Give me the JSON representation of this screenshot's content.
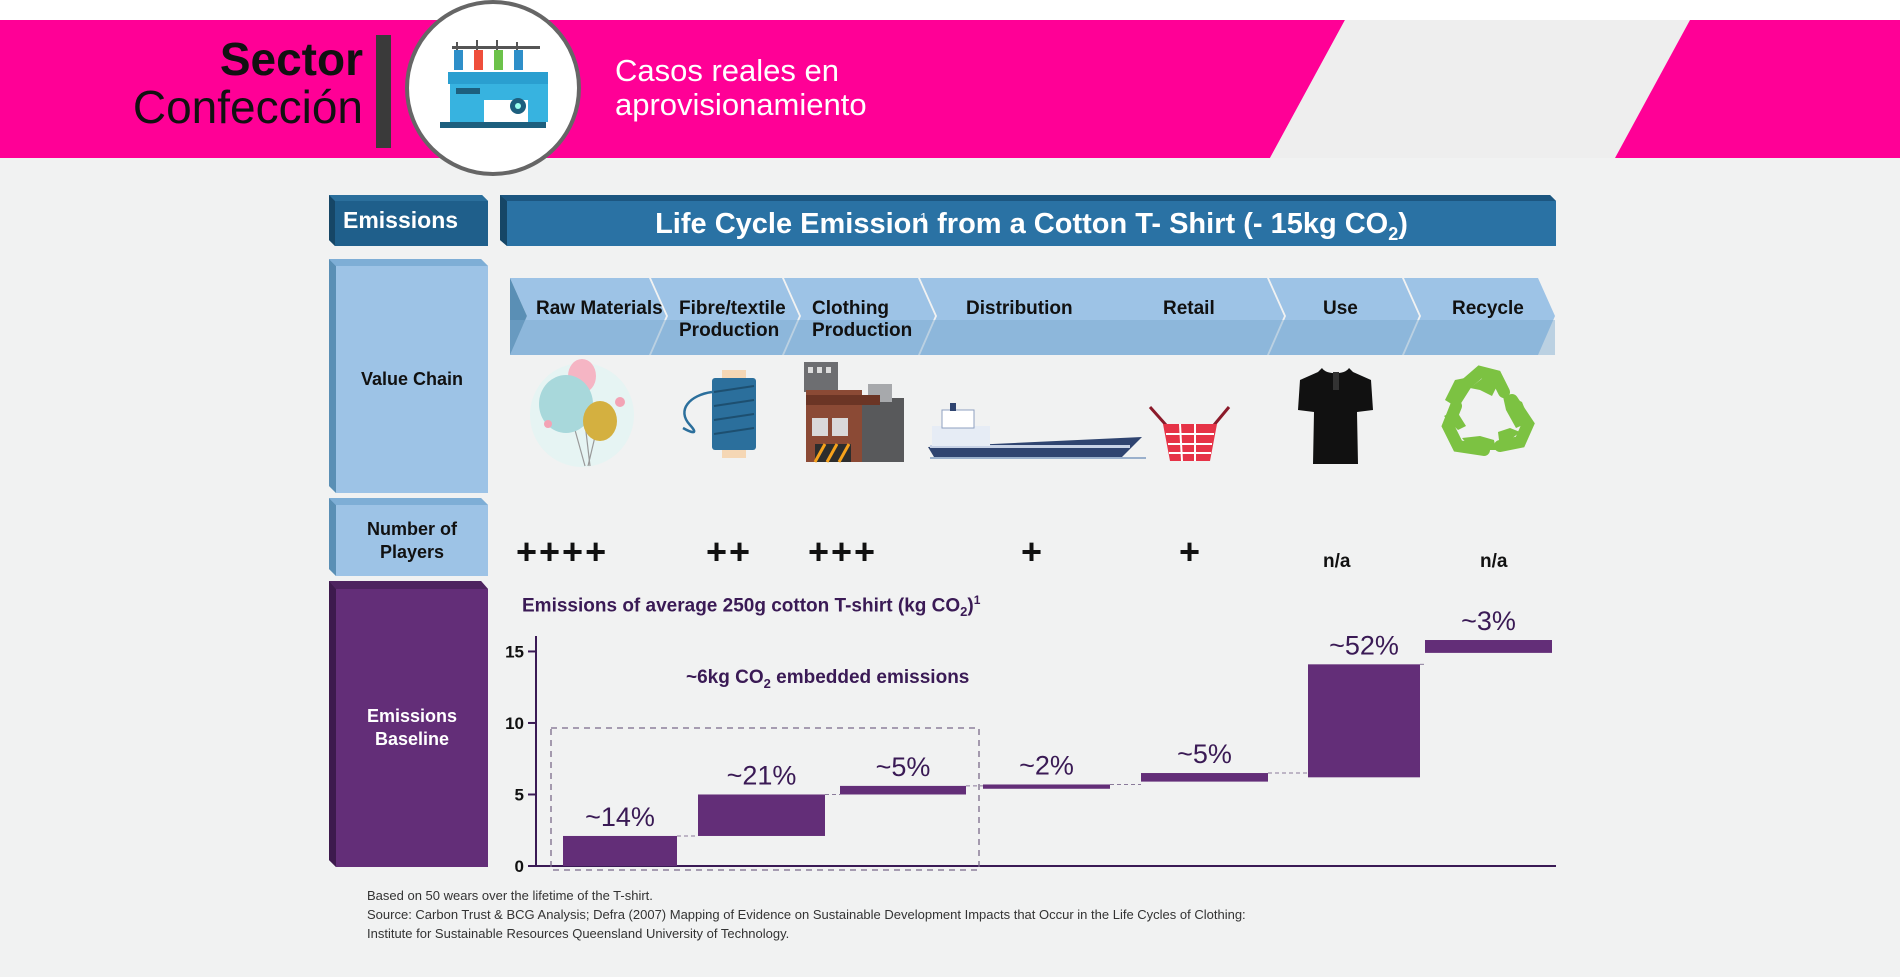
{
  "header": {
    "sector_bold": "Sector",
    "sector_regular": "Confección",
    "subtitle_line1": "Casos reales en",
    "subtitle_line2": "aprovisionamiento",
    "icon": "sewing-machine-icon",
    "colors": {
      "magenta": "#ff0096",
      "dark_bar": "#3a3a3a"
    }
  },
  "infographic": {
    "emissions_tab": "Emissions",
    "main_title": "Life Cycle Emission from a Cotton T- Shirt (- 15kg CO",
    "main_title_sub": "2",
    "main_title_end": ")",
    "main_title_mark": "1",
    "rows": {
      "value_chain": "Value Chain",
      "number_of_players_1": "Number of",
      "number_of_players_2": "Players",
      "emissions_baseline_1": "Emissions",
      "emissions_baseline_2": "Baseline"
    },
    "stages": [
      {
        "label1": "Raw Materials",
        "label2": "",
        "icon": "balloons-icon",
        "players": "++++"
      },
      {
        "label1": "Fibre/textile",
        "label2": "Production",
        "icon": "thread-spool-icon",
        "players": "++"
      },
      {
        "label1": "Clothing",
        "label2": "Production",
        "icon": "factory-icon",
        "players": "+++"
      },
      {
        "label1": "Distribution",
        "label2": "",
        "icon": "cargo-ship-icon",
        "players": "+"
      },
      {
        "label1": "Retail",
        "label2": "",
        "icon": "shopping-basket-icon",
        "players": "+"
      },
      {
        "label1": "Use",
        "label2": "",
        "icon": "tshirt-icon",
        "players": "n/a"
      },
      {
        "label1": "Recycle",
        "label2": "",
        "icon": "recycle-icon",
        "players": "n/a"
      }
    ],
    "colors": {
      "dark_blue": "#1f5f8b",
      "light_blue": "#9dc3e6",
      "purple": "#632e78",
      "recycle_green": "#7cc242"
    }
  },
  "chart_data": {
    "type": "bar",
    "subtype": "waterfall",
    "title": "Emissions of average 250g cotton T-shirt (kg CO",
    "title_sub": "2",
    "title_end": ")",
    "title_mark": "1",
    "annotation": "~6kg CO",
    "annotation_sub": "2",
    "annotation_end": " embedded emissions",
    "yticks": [
      0,
      5,
      10,
      15
    ],
    "ylim": [
      0,
      16.5
    ],
    "segments": [
      {
        "label": "~14%",
        "start": 0.0,
        "end": 2.1
      },
      {
        "label": "~21%",
        "start": 2.1,
        "end": 5.0
      },
      {
        "label": "~5%",
        "start": 5.0,
        "end": 5.6
      },
      {
        "label": "~2%",
        "start": 5.4,
        "end": 5.7
      },
      {
        "label": "~5%",
        "start": 5.9,
        "end": 6.5
      },
      {
        "label": "~52%",
        "start": 6.2,
        "end": 14.1
      },
      {
        "label": "~3%",
        "start": 14.9,
        "end": 15.8
      }
    ]
  },
  "footnotes": {
    "line1": "Based on 50 wears over the lifetime of the T-shirt.",
    "line2": "Source: Carbon Trust & BCG Analysis; Defra (2007) Mapping of Evidence on Sustainable Development Impacts that Occur in the Life Cycles of Clothing:",
    "line3": "Institute for Sustainable Resources Queensland University of Technology."
  }
}
